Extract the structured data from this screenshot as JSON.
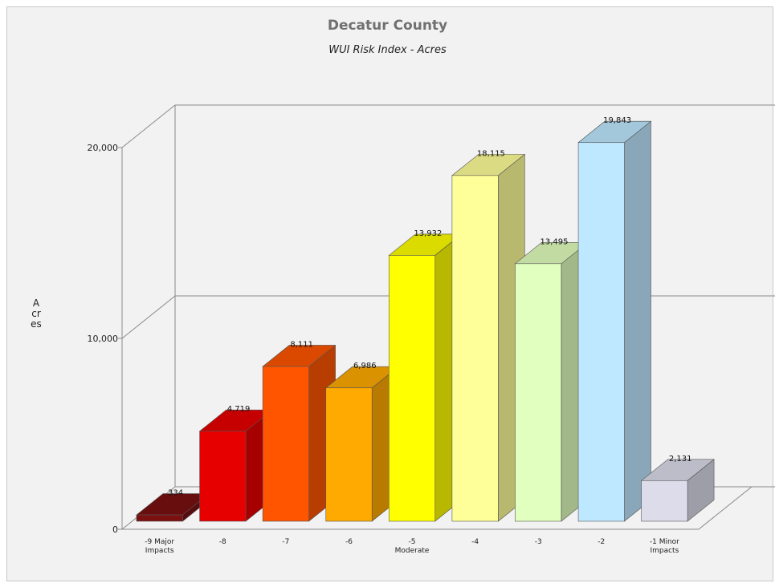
{
  "chart_data": {
    "type": "bar",
    "title": "Decatur County",
    "subtitle": "WUI Risk Index - Acres",
    "ylabel": "Acres",
    "xlabel": "",
    "ylim": [
      0,
      20000
    ],
    "yticks": [
      0,
      10000,
      20000
    ],
    "ytick_labels": [
      "0",
      "10,000",
      "20,000"
    ],
    "categories": [
      [
        "-9 Major",
        "Impacts"
      ],
      [
        "-8"
      ],
      [
        "-7"
      ],
      [
        "-6"
      ],
      [
        "-5",
        "Moderate"
      ],
      [
        "-4"
      ],
      [
        "-3"
      ],
      [
        "-2"
      ],
      [
        "-1 Minor",
        "Impacts"
      ]
    ],
    "values": [
      334,
      4719,
      8111,
      6986,
      13932,
      18115,
      13495,
      19843,
      2131
    ],
    "value_labels": [
      "334",
      "4,719",
      "8,111",
      "6,986",
      "13,932",
      "18,115",
      "13,495",
      "19,843",
      "2,131"
    ],
    "colors": [
      "#7a1010",
      "#e60000",
      "#ff5500",
      "#ffaa00",
      "#ffff00",
      "#ffff99",
      "#e1ffbe",
      "#bee8ff",
      "#dcdcea"
    ],
    "grid": true,
    "style": "3d"
  }
}
